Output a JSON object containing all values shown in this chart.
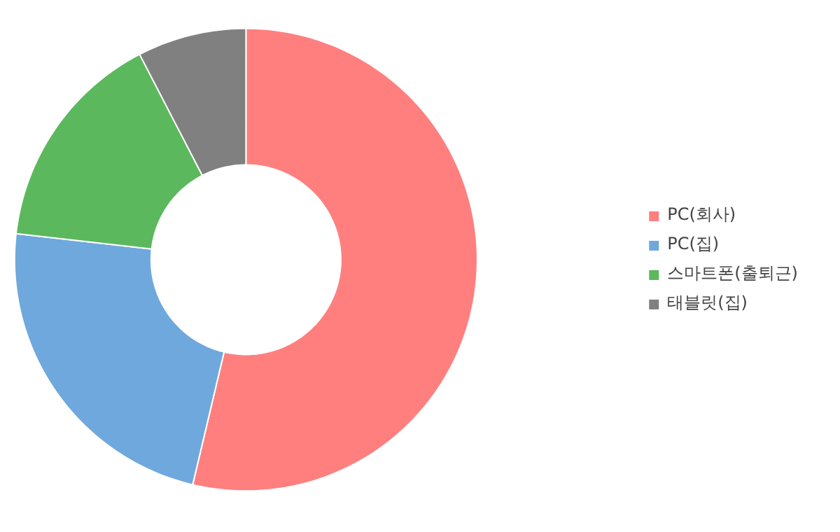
{
  "chart_data": {
    "type": "donut",
    "categories": [
      "PC(회사)",
      "PC(집)",
      "스마트폰(출퇴근)",
      "태블릿(집)"
    ],
    "values": [
      53.7,
      23.1,
      15.6,
      7.6
    ],
    "colors": [
      "#ff7f7f",
      "#6fa8dc",
      "#5cb85c",
      "#808080"
    ],
    "legend": "right"
  }
}
